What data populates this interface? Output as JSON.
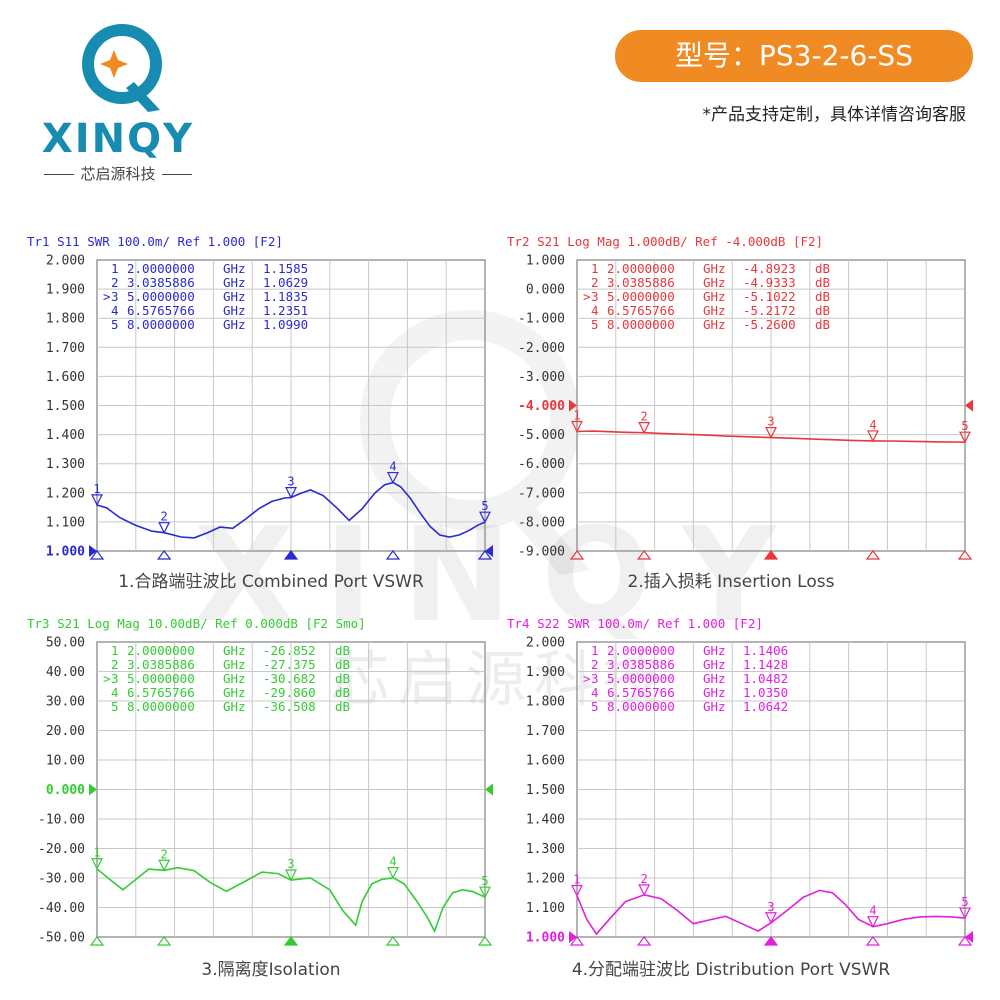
{
  "header": {
    "brand": "XINQY",
    "brand_cn": "芯启源科技",
    "model": "型号：PS3-2-6-SS",
    "custom_note": "*产品支持定制，具体详情咨询客服"
  },
  "watermark": {
    "brand": "XINQY",
    "brand_cn": "芯启源科技"
  },
  "colors": {
    "accent": "#f08a23",
    "brand": "#178cb0"
  },
  "chart_data": [
    {
      "id": "tr1",
      "type": "line",
      "color": "#2a2ad2",
      "trace_header": "Tr1 S11 SWR 100.0m/ Ref 1.000 [F2]",
      "title": "1.合路端驻波比 Combined Port VSWR",
      "ylim": [
        1.0,
        2.0
      ],
      "ref_value": 1.0,
      "yticks": [
        "2.000",
        "1.900",
        "1.800",
        "1.700",
        "1.600",
        "1.500",
        "1.400",
        "1.300",
        "1.200",
        "1.100",
        "1.000"
      ],
      "xlim": [
        2.0,
        8.0
      ],
      "x_unit": "GHz",
      "markers": [
        {
          "num": "1",
          "prefix": " ",
          "freq": "2.0000000",
          "value": "1.1585",
          "unit": "",
          "x": 2.0,
          "y": 1.1585
        },
        {
          "num": "2",
          "prefix": " ",
          "freq": "3.0385886",
          "value": "1.0629",
          "unit": "",
          "x": 3.0385886,
          "y": 1.0629
        },
        {
          "num": "3",
          "prefix": ">",
          "freq": "5.0000000",
          "value": "1.1835",
          "unit": "",
          "x": 5.0,
          "y": 1.1835
        },
        {
          "num": "4",
          "prefix": " ",
          "freq": "6.5765766",
          "value": "1.2351",
          "unit": "",
          "x": 6.5765766,
          "y": 1.2351
        },
        {
          "num": "5",
          "prefix": " ",
          "freq": "8.0000000",
          "value": "1.0990",
          "unit": "",
          "x": 8.0,
          "y": 1.099
        }
      ],
      "series": [
        {
          "x": [
            2.0,
            2.15,
            2.35,
            2.6,
            2.85,
            3.04,
            3.3,
            3.5,
            3.7,
            3.9,
            4.1,
            4.3,
            4.5,
            4.7,
            4.9,
            5.0,
            5.15,
            5.3,
            5.5,
            5.7,
            5.9,
            6.1,
            6.3,
            6.45,
            6.58,
            6.7,
            6.85,
            7.0,
            7.15,
            7.3,
            7.45,
            7.6,
            7.75,
            7.9,
            8.0
          ],
          "y": [
            1.158,
            1.148,
            1.115,
            1.088,
            1.068,
            1.063,
            1.048,
            1.045,
            1.062,
            1.082,
            1.078,
            1.11,
            1.145,
            1.17,
            1.182,
            1.184,
            1.198,
            1.21,
            1.19,
            1.15,
            1.105,
            1.145,
            1.2,
            1.228,
            1.235,
            1.22,
            1.18,
            1.13,
            1.085,
            1.055,
            1.048,
            1.055,
            1.07,
            1.09,
            1.099
          ]
        }
      ]
    },
    {
      "id": "tr2",
      "type": "line",
      "color": "#e8373d",
      "trace_header": "Tr2 S21 Log Mag 1.000dB/ Ref -4.000dB [F2]",
      "title": "2.插入损耗 Insertion Loss",
      "ylim": [
        -9.0,
        1.0
      ],
      "ref_value": -4.0,
      "yticks": [
        "1.000",
        "0.000",
        "-1.000",
        "-2.000",
        "-3.000",
        "-4.000",
        "-5.000",
        "-6.000",
        "-7.000",
        "-8.000",
        "-9.000"
      ],
      "xlim": [
        2.0,
        8.0
      ],
      "x_unit": "GHz",
      "markers": [
        {
          "num": "1",
          "prefix": " ",
          "freq": "2.0000000",
          "value": "-4.8923",
          "unit": "dB",
          "x": 2.0,
          "y": -4.8923
        },
        {
          "num": "2",
          "prefix": " ",
          "freq": "3.0385886",
          "value": "-4.9333",
          "unit": "dB",
          "x": 3.0385886,
          "y": -4.9333
        },
        {
          "num": "3",
          "prefix": ">",
          "freq": "5.0000000",
          "value": "-5.1022",
          "unit": "dB",
          "x": 5.0,
          "y": -5.1022
        },
        {
          "num": "4",
          "prefix": " ",
          "freq": "6.5765766",
          "value": "-5.2172",
          "unit": "dB",
          "x": 6.5765766,
          "y": -5.2172
        },
        {
          "num": "5",
          "prefix": " ",
          "freq": "8.0000000",
          "value": "-5.2600",
          "unit": "dB",
          "x": 8.0,
          "y": -5.26
        }
      ],
      "series": [
        {
          "x": [
            2.0,
            2.25,
            2.5,
            2.75,
            3.04,
            3.3,
            3.55,
            3.8,
            4.05,
            4.3,
            4.55,
            4.8,
            5.0,
            5.25,
            5.5,
            5.75,
            6.0,
            6.25,
            6.58,
            6.85,
            7.1,
            7.35,
            7.6,
            7.85,
            8.0
          ],
          "y": [
            -4.892,
            -4.88,
            -4.9,
            -4.92,
            -4.933,
            -4.96,
            -4.98,
            -5.0,
            -5.02,
            -5.05,
            -5.07,
            -5.09,
            -5.102,
            -5.12,
            -5.14,
            -5.16,
            -5.18,
            -5.2,
            -5.217,
            -5.22,
            -5.23,
            -5.24,
            -5.25,
            -5.255,
            -5.26
          ]
        }
      ]
    },
    {
      "id": "tr3",
      "type": "line",
      "color": "#33cc33",
      "trace_header": "Tr3 S21 Log Mag 10.00dB/ Ref 0.000dB [F2 Smo]",
      "title": "3.隔离度Isolation",
      "ylim": [
        -50.0,
        50.0
      ],
      "ref_value": 0.0,
      "yticks": [
        "50.00",
        "40.00",
        "30.00",
        "20.00",
        "10.00",
        "0.000",
        "-10.00",
        "-20.00",
        "-30.00",
        "-40.00",
        "-50.00"
      ],
      "xlim": [
        2.0,
        8.0
      ],
      "x_unit": "GHz",
      "markers": [
        {
          "num": "1",
          "prefix": " ",
          "freq": "2.0000000",
          "value": "-26.852",
          "unit": "dB",
          "x": 2.0,
          "y": -26.852
        },
        {
          "num": "2",
          "prefix": " ",
          "freq": "3.0385886",
          "value": "-27.375",
          "unit": "dB",
          "x": 3.0385886,
          "y": -27.375
        },
        {
          "num": "3",
          "prefix": ">",
          "freq": "5.0000000",
          "value": "-30.682",
          "unit": "dB",
          "x": 5.0,
          "y": -30.682
        },
        {
          "num": "4",
          "prefix": " ",
          "freq": "6.5765766",
          "value": "-29.860",
          "unit": "dB",
          "x": 6.5765766,
          "y": -29.86
        },
        {
          "num": "5",
          "prefix": " ",
          "freq": "8.0000000",
          "value": "-36.508",
          "unit": "dB",
          "x": 8.0,
          "y": -36.508
        }
      ],
      "series": [
        {
          "x": [
            2.0,
            2.2,
            2.4,
            2.6,
            2.8,
            3.04,
            3.25,
            3.5,
            3.75,
            4.0,
            4.3,
            4.55,
            4.8,
            5.0,
            5.3,
            5.6,
            5.8,
            6.0,
            6.1,
            6.25,
            6.4,
            6.58,
            6.75,
            6.95,
            7.1,
            7.22,
            7.35,
            7.5,
            7.65,
            7.8,
            8.0
          ],
          "y": [
            -26.9,
            -30.5,
            -34.0,
            -30.5,
            -27.0,
            -27.4,
            -26.5,
            -27.5,
            -31.5,
            -34.5,
            -31.0,
            -28.0,
            -28.5,
            -30.7,
            -30.0,
            -34.0,
            -41.0,
            -46.0,
            -38.0,
            -32.0,
            -30.5,
            -29.9,
            -32.0,
            -38.0,
            -43.0,
            -48.0,
            -40.0,
            -35.0,
            -34.0,
            -34.5,
            -36.5
          ]
        }
      ]
    },
    {
      "id": "tr4",
      "type": "line",
      "color": "#e020e0",
      "trace_header": "Tr4 S22 SWR 100.0m/ Ref 1.000 [F2]",
      "title": "4.分配端驻波比 Distribution  Port VSWR",
      "ylim": [
        1.0,
        2.0
      ],
      "ref_value": 1.0,
      "yticks": [
        "2.000",
        "1.900",
        "1.800",
        "1.700",
        "1.600",
        "1.500",
        "1.400",
        "1.300",
        "1.200",
        "1.100",
        "1.000"
      ],
      "xlim": [
        2.0,
        8.0
      ],
      "x_unit": "GHz",
      "markers": [
        {
          "num": "1",
          "prefix": " ",
          "freq": "2.0000000",
          "value": "1.1406",
          "unit": "",
          "x": 2.0,
          "y": 1.1406
        },
        {
          "num": "2",
          "prefix": " ",
          "freq": "3.0385886",
          "value": "1.1428",
          "unit": "",
          "x": 3.0385886,
          "y": 1.1428
        },
        {
          "num": "3",
          "prefix": ">",
          "freq": "5.0000000",
          "value": "1.0482",
          "unit": "",
          "x": 5.0,
          "y": 1.0482
        },
        {
          "num": "4",
          "prefix": " ",
          "freq": "6.5765766",
          "value": "1.0350",
          "unit": "",
          "x": 6.5765766,
          "y": 1.035
        },
        {
          "num": "5",
          "prefix": " ",
          "freq": "8.0000000",
          "value": "1.0642",
          "unit": "",
          "x": 8.0,
          "y": 1.0642
        }
      ],
      "series": [
        {
          "x": [
            2.0,
            2.15,
            2.3,
            2.5,
            2.75,
            3.04,
            3.3,
            3.55,
            3.8,
            4.05,
            4.3,
            4.55,
            4.8,
            5.0,
            5.25,
            5.5,
            5.75,
            5.95,
            6.15,
            6.35,
            6.58,
            6.8,
            7.05,
            7.3,
            7.55,
            7.8,
            8.0
          ],
          "y": [
            1.14,
            1.06,
            1.01,
            1.06,
            1.12,
            1.143,
            1.13,
            1.09,
            1.045,
            1.058,
            1.07,
            1.045,
            1.02,
            1.048,
            1.09,
            1.135,
            1.158,
            1.15,
            1.11,
            1.06,
            1.035,
            1.045,
            1.06,
            1.068,
            1.07,
            1.068,
            1.064
          ]
        }
      ]
    }
  ]
}
